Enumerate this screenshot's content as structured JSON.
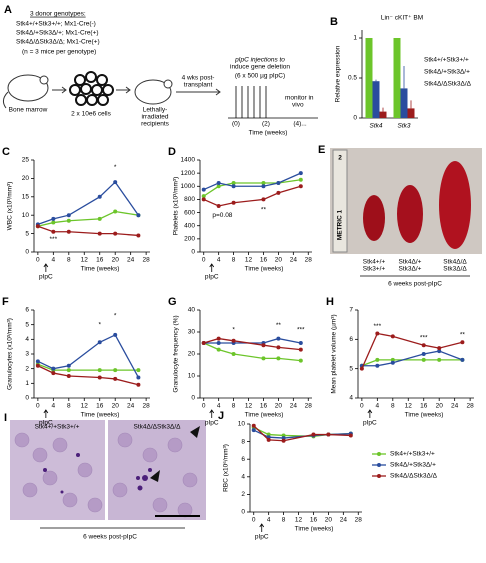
{
  "panel_a": {
    "label": "A",
    "genotypes_title": "3 donor genotypes:",
    "genotypes": [
      "Stk4+/+Stk3+/+; Mx1-Cre(-)",
      "Stk4Δ/+Stk3Δ/+; Mx1-Cre(+)",
      "Stk4Δ/ΔStk3Δ/Δ; Mx1-Cre(+)"
    ],
    "genotype_colors": [
      "#6cc52a",
      "#2a4d9e",
      "#9c1c1c"
    ],
    "n_note": "(n = 3 mice per genotype)",
    "bone_marrow": "Bone marrow",
    "cells": "2 x 10e6 cells",
    "recipients": [
      "Lethally-",
      "irradiated",
      "recipients"
    ],
    "wait": [
      "4 wks post-",
      "transplant"
    ],
    "injections": [
      "pIpC injections to",
      "induce gene deletion"
    ],
    "dose": "(6 x 500 µg pIpC)",
    "monitor": [
      "monitor in",
      "vivo"
    ],
    "time_ticks": [
      "(0)",
      "(2)",
      "(4)..."
    ],
    "time_label": "Time (weeks)"
  },
  "chart_data": [
    {
      "type": "bar",
      "panel": "B",
      "title": "Lin⁻ cKIT⁺ BM",
      "y_label": "Relative expression",
      "categories": [
        "Stk4",
        "Stk3"
      ],
      "ylim": [
        0,
        1.1
      ],
      "yticks": [
        0,
        0.5,
        1
      ],
      "series": [
        {
          "name": "Stk4+/+Stk3+/+",
          "color": "#6cc52a",
          "values": [
            1,
            1
          ],
          "errors": [
            0,
            0
          ]
        },
        {
          "name": "Stk4Δ/+Stk3Δ/+",
          "color": "#2a4d9e",
          "values": [
            0.46,
            0.37
          ],
          "errors": [
            0.02,
            0.28
          ]
        },
        {
          "name": "Stk4Δ/ΔStk3Δ/Δ",
          "color": "#9c1c1c",
          "values": [
            0.08,
            0.12
          ],
          "errors": [
            0.05,
            0.1
          ]
        }
      ]
    },
    {
      "type": "line",
      "panel": "C",
      "y_label": "WBC (x10³/mm³)",
      "x_label": "Time (weeks)",
      "x_note": "pIpC",
      "x": [
        0,
        4,
        8,
        16,
        20,
        26
      ],
      "xlim": [
        -1,
        29
      ],
      "xticks": [
        0,
        4,
        8,
        12,
        16,
        20,
        24,
        28
      ],
      "ylim": [
        0,
        25
      ],
      "yticks": [
        0,
        5,
        10,
        15,
        20,
        25
      ],
      "series": [
        {
          "name": "Stk4+/+Stk3+/+",
          "color": "#6cc52a",
          "values": [
            7,
            8,
            8.5,
            9,
            11,
            10
          ]
        },
        {
          "name": "Stk4Δ/+Stk3Δ/+",
          "color": "#2a4d9e",
          "values": [
            7.5,
            9,
            10,
            15,
            19,
            10
          ]
        },
        {
          "name": "Stk4Δ/ΔStk3Δ/Δ",
          "color": "#9c1c1c",
          "values": [
            7,
            5.5,
            5.5,
            5,
            5,
            4.5
          ]
        }
      ],
      "annotations": [
        {
          "text": "*",
          "x": 20,
          "y": 23,
          "color": "#2a4d9e"
        },
        {
          "text": "***",
          "x": 4,
          "y": 3.5,
          "color": "#9c1c1c"
        }
      ]
    },
    {
      "type": "line",
      "panel": "D",
      "y_label": "Platelets (x10³/mm³)",
      "x_label": "Time (weeks)",
      "x_note": "pIpC",
      "x": [
        0,
        4,
        8,
        16,
        20,
        26
      ],
      "xlim": [
        -1,
        29
      ],
      "xticks": [
        0,
        4,
        8,
        12,
        16,
        20,
        24,
        28
      ],
      "ylim": [
        0,
        1400
      ],
      "yticks": [
        0,
        200,
        400,
        600,
        800,
        1000,
        1200,
        1400
      ],
      "series": [
        {
          "name": "Stk4+/+Stk3+/+",
          "color": "#6cc52a",
          "values": [
            850,
            1000,
            1050,
            1050,
            1050,
            1100
          ]
        },
        {
          "name": "Stk4Δ/+Stk3Δ/+",
          "color": "#2a4d9e",
          "values": [
            950,
            1050,
            1000,
            1000,
            1050,
            1200
          ]
        },
        {
          "name": "Stk4Δ/ΔStk3Δ/Δ",
          "color": "#9c1c1c",
          "values": [
            800,
            700,
            750,
            800,
            900,
            1000
          ]
        }
      ],
      "annotations": [
        {
          "text": "p=0.08",
          "x": 5,
          "y": 560,
          "color": "#9c1c1c"
        },
        {
          "text": "**",
          "x": 16,
          "y": 640,
          "color": "#9c1c1c"
        }
      ]
    },
    {
      "type": "line",
      "panel": "F",
      "y_label": "Granulocytes (x10³/mm³)",
      "x_label": "Time (weeks)",
      "x_note": "pIpC",
      "x": [
        0,
        4,
        8,
        16,
        20,
        26
      ],
      "xlim": [
        -1,
        29
      ],
      "xticks": [
        0,
        4,
        8,
        12,
        16,
        20,
        24,
        28
      ],
      "ylim": [
        0,
        6
      ],
      "yticks": [
        0,
        1,
        2,
        3,
        4,
        5,
        6
      ],
      "series": [
        {
          "name": "Stk4+/+Stk3+/+",
          "color": "#6cc52a",
          "values": [
            2.3,
            1.9,
            1.9,
            1.9,
            1.9,
            1.9
          ]
        },
        {
          "name": "Stk4Δ/+Stk3Δ/+",
          "color": "#2a4d9e",
          "values": [
            2.5,
            2.0,
            2.2,
            3.8,
            4.3,
            1.4
          ]
        },
        {
          "name": "Stk4Δ/ΔStk3Δ/Δ",
          "color": "#9c1c1c",
          "values": [
            2.2,
            1.7,
            1.5,
            1.4,
            1.3,
            0.9
          ]
        }
      ],
      "annotations": [
        {
          "text": "*",
          "x": 16,
          "y": 5,
          "color": "#2a4d9e"
        },
        {
          "text": "*",
          "x": 20,
          "y": 5.6,
          "color": "#2a4d9e"
        }
      ]
    },
    {
      "type": "line",
      "panel": "G",
      "y_label": "Granulocyte frequency (%)",
      "x_label": "Time (weeks)",
      "x_note": "pIpC",
      "x": [
        0,
        4,
        8,
        16,
        20,
        26
      ],
      "xlim": [
        -1,
        29
      ],
      "xticks": [
        0,
        4,
        8,
        12,
        16,
        20,
        24,
        28
      ],
      "ylim": [
        0,
        40
      ],
      "yticks": [
        0,
        10,
        20,
        30,
        40
      ],
      "series": [
        {
          "name": "Stk4+/+Stk3+/+",
          "color": "#6cc52a",
          "values": [
            25,
            22,
            20,
            18,
            18,
            17
          ]
        },
        {
          "name": "Stk4Δ/+Stk3Δ/+",
          "color": "#2a4d9e",
          "values": [
            25,
            25,
            25,
            25,
            27,
            25
          ]
        },
        {
          "name": "Stk4Δ/ΔStk3Δ/Δ",
          "color": "#9c1c1c",
          "values": [
            25,
            27,
            26,
            24,
            23,
            22
          ]
        }
      ],
      "annotations": [
        {
          "text": "*",
          "x": 8,
          "y": 31,
          "color": "#9c1c1c"
        },
        {
          "text": "**",
          "x": 20,
          "y": 33,
          "color": "#2a4d9e"
        },
        {
          "text": "***",
          "x": 26,
          "y": 31,
          "color": "#2a4d9e"
        }
      ]
    },
    {
      "type": "line",
      "panel": "H",
      "y_label": "Mean platelet volume (µm³)",
      "x_label": "Time (weeks)",
      "x_note": "pIpC",
      "x": [
        0,
        4,
        8,
        16,
        20,
        26
      ],
      "xlim": [
        -1,
        29
      ],
      "xticks": [
        0,
        4,
        8,
        12,
        16,
        20,
        24,
        28
      ],
      "ylim": [
        4,
        7
      ],
      "yticks": [
        4,
        5,
        6,
        7
      ],
      "series": [
        {
          "name": "Stk4+/+Stk3+/+",
          "color": "#6cc52a",
          "values": [
            5.1,
            5.3,
            5.3,
            5.3,
            5.3,
            5.3
          ]
        },
        {
          "name": "Stk4Δ/+Stk3Δ/+",
          "color": "#2a4d9e",
          "values": [
            5.1,
            5.1,
            5.2,
            5.5,
            5.6,
            5.3
          ]
        },
        {
          "name": "Stk4Δ/ΔStk3Δ/Δ",
          "color": "#9c1c1c",
          "values": [
            5.0,
            6.2,
            6.1,
            5.8,
            5.7,
            5.9
          ]
        }
      ],
      "annotations": [
        {
          "text": "***",
          "x": 4,
          "y": 6.45,
          "color": "#9c1c1c"
        },
        {
          "text": "***",
          "x": 16,
          "y": 6.05,
          "color": "#9c1c1c"
        },
        {
          "text": "**",
          "x": 26,
          "y": 6.15,
          "color": "#9c1c1c"
        }
      ]
    },
    {
      "type": "line",
      "panel": "J",
      "y_label": "RBC (x10⁶/mm³)",
      "x_label": "Time (weeks)",
      "x_note": "pIpC",
      "legend": "right",
      "x": [
        0,
        4,
        8,
        16,
        20,
        26
      ],
      "xlim": [
        -1,
        29
      ],
      "xticks": [
        0,
        4,
        8,
        12,
        16,
        20,
        24,
        28
      ],
      "ylim": [
        0,
        10
      ],
      "yticks": [
        0,
        2,
        4,
        6,
        8,
        10
      ],
      "series": [
        {
          "name": "Stk4+/+Stk3+/+",
          "color": "#6cc52a",
          "values": [
            9.6,
            8.8,
            8.7,
            8.6,
            8.8,
            8.9
          ]
        },
        {
          "name": "Stk4Δ/+Stk3Δ/+",
          "color": "#2a4d9e",
          "values": [
            9.3,
            8.5,
            8.4,
            8.7,
            8.8,
            8.9
          ]
        },
        {
          "name": "Stk4Δ/ΔStk3Δ/Δ",
          "color": "#9c1c1c",
          "values": [
            9.8,
            8.2,
            8.1,
            8.8,
            8.8,
            8.7
          ]
        }
      ]
    }
  ],
  "panel_e": {
    "label": "E",
    "ruler": "METRIC 1",
    "ruler_num": "2",
    "genotypes": [
      [
        "Stk4+/+",
        "Stk3+/+"
      ],
      [
        "Stk4Δ/+",
        "Stk3Δ/+"
      ],
      [
        "Stk4Δ/Δ",
        "Stk3Δ/Δ"
      ]
    ],
    "caption": "6 weeks post-pIpC"
  },
  "panel_i": {
    "label": "I",
    "genotypes": [
      "Stk4+/+Stk3+/+",
      "Stk4Δ/ΔStk3Δ/Δ"
    ],
    "caption": "6 weeks post-pIpC"
  }
}
